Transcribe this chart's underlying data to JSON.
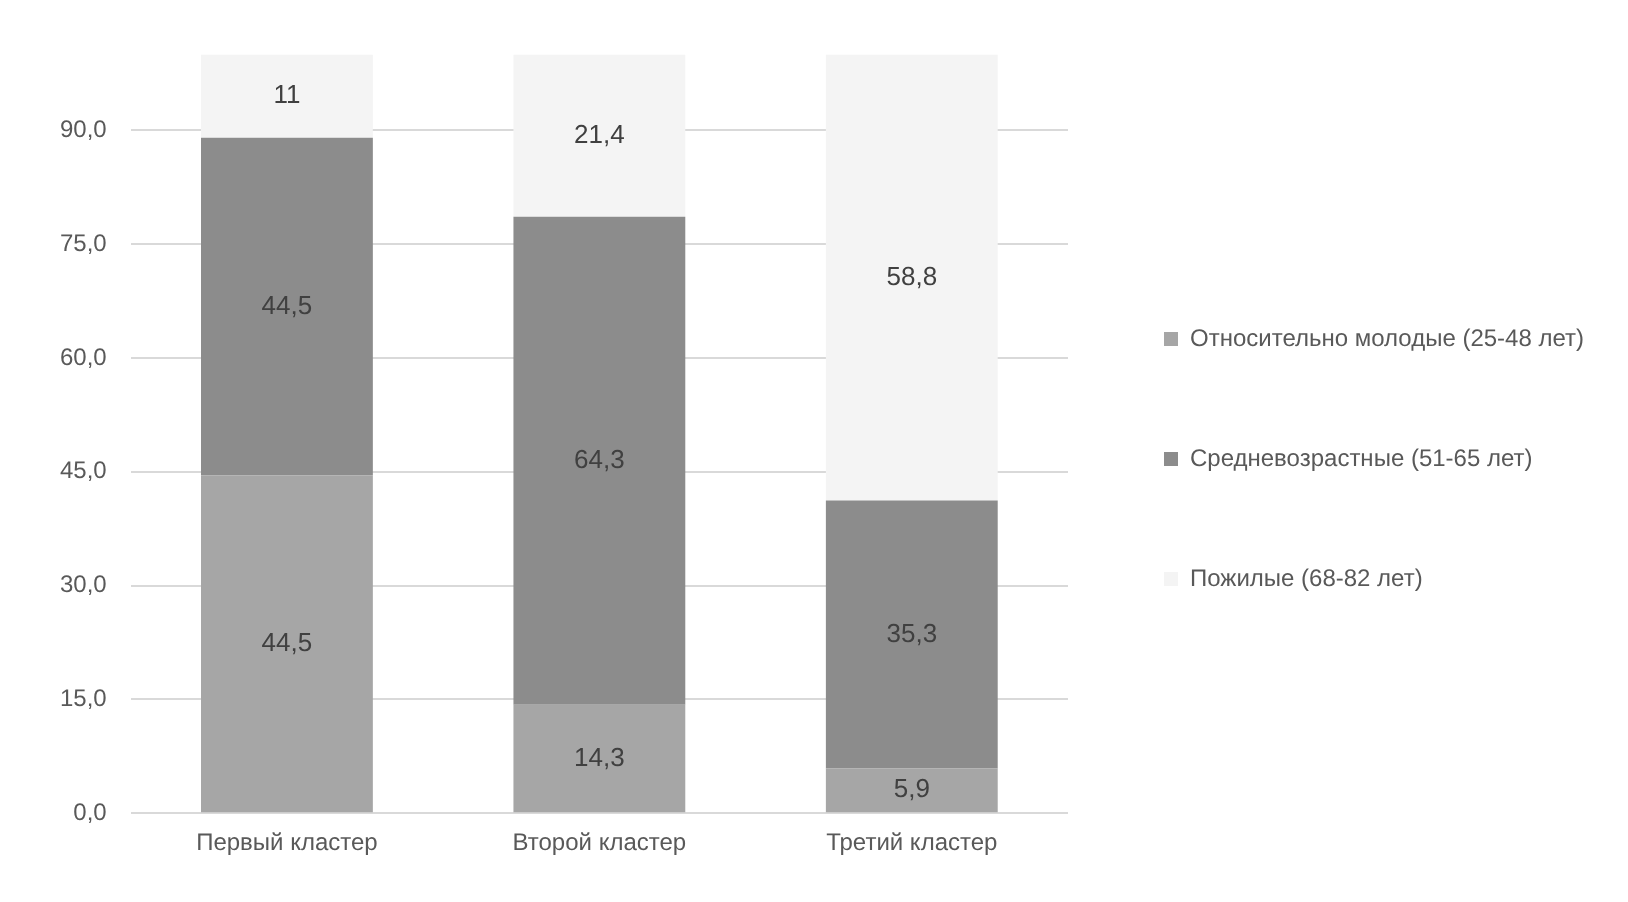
{
  "chart_data": {
    "type": "bar",
    "stacked": true,
    "categories": [
      "Первый кластер",
      "Второй кластер",
      "Третий кластер"
    ],
    "series": [
      {
        "name": "Относительно молодые (25-48 лет)",
        "color": "#a6a6a6",
        "values": [
          44.5,
          14.3,
          5.9
        ],
        "value_labels": [
          "44,5",
          "14,3",
          "5,9"
        ]
      },
      {
        "name": "Средневозрастные (51-65 лет)",
        "color": "#8c8c8c",
        "values": [
          44.5,
          64.3,
          35.3
        ],
        "value_labels": [
          "44,5",
          "64,3",
          "35,3"
        ]
      },
      {
        "name": "Пожилые (68-82 лет)",
        "color": "#f4f4f4",
        "values": [
          11,
          21.4,
          58.8
        ],
        "value_labels": [
          "11",
          "21,4",
          "58,8"
        ]
      }
    ],
    "ylim": [
      0,
      100
    ],
    "yticks": [
      {
        "value": 0,
        "label": "0,0"
      },
      {
        "value": 15,
        "label": "15,0"
      },
      {
        "value": 30,
        "label": "30,0"
      },
      {
        "value": 45,
        "label": "45,0"
      },
      {
        "value": 60,
        "label": "60,0"
      },
      {
        "value": 75,
        "label": "75,0"
      },
      {
        "value": 90,
        "label": "90,0"
      }
    ],
    "grid": "y",
    "legend": "right"
  }
}
